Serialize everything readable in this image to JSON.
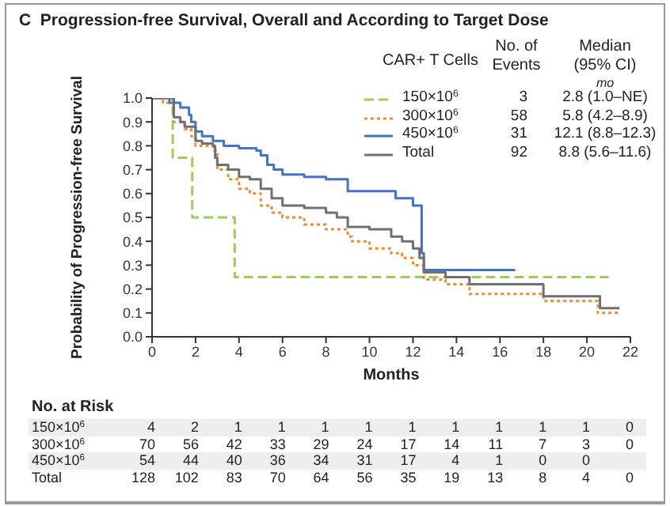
{
  "chart_data": {
    "type": "step",
    "title": "C  Progression-free Survival, Overall and According to Target Dose",
    "xlabel": "Months",
    "ylabel": "Probability of Progression-free Survival",
    "legend_title": "CAR+ T Cells",
    "xlim": [
      0,
      22
    ],
    "xticks": [
      0,
      2,
      4,
      6,
      8,
      10,
      12,
      14,
      16,
      18,
      20,
      22
    ],
    "ylim": [
      0,
      1.0
    ],
    "yticks": [
      {
        "value": 0,
        "label": "0.0"
      },
      0.1,
      0.2,
      0.3,
      0.4,
      0.5,
      0.6,
      0.7,
      0.8,
      0.9,
      {
        "value": 1,
        "label": "1.0"
      }
    ],
    "legend": "top right",
    "marker": "none",
    "series": [
      {
        "name": "150×10$^{6}$",
        "color": "#9acd5a",
        "line_style": "dashed",
        "x": [
          0,
          0.95,
          1.85,
          3.8,
          21
        ],
        "values": [
          1.0,
          0.75,
          0.5,
          0.25,
          0.25
        ]
      },
      {
        "name": "300×10$^{6}$",
        "color": "#f08a30",
        "line_style": "dotted",
        "x": [
          0,
          0.5,
          1.0,
          1.5,
          1.8,
          2.0,
          2.8,
          3.0,
          3.5,
          4.0,
          4.5,
          5.0,
          5.5,
          6.0,
          7.0,
          8.0,
          9.0,
          9.2,
          10.0,
          11.0,
          11.5,
          12.0,
          12.5,
          13.5,
          14.6,
          18.0,
          20.5,
          21.5
        ],
        "values": [
          1.0,
          0.98,
          0.9,
          0.87,
          0.84,
          0.8,
          0.78,
          0.7,
          0.66,
          0.62,
          0.6,
          0.55,
          0.52,
          0.5,
          0.47,
          0.45,
          0.42,
          0.4,
          0.37,
          0.35,
          0.33,
          0.3,
          0.24,
          0.22,
          0.18,
          0.15,
          0.1,
          0.1
        ]
      },
      {
        "name": "450×10$^{6}$",
        "color": "#4472c4",
        "line_style": "solid",
        "x": [
          0,
          1.0,
          1.3,
          1.7,
          1.8,
          2.0,
          2.3,
          2.8,
          3.3,
          4.0,
          4.8,
          5.0,
          5.3,
          5.6,
          6.0,
          7.0,
          8.0,
          9.0,
          11.2,
          12.0,
          12.4,
          12.5,
          16.7
        ],
        "values": [
          1.0,
          0.98,
          0.96,
          0.93,
          0.9,
          0.86,
          0.84,
          0.82,
          0.8,
          0.79,
          0.78,
          0.76,
          0.72,
          0.7,
          0.68,
          0.67,
          0.66,
          0.61,
          0.58,
          0.55,
          0.35,
          0.28,
          0.28
        ]
      },
      {
        "name": "Total",
        "color": "#707070",
        "line_style": "solid",
        "x": [
          0,
          0.8,
          1.0,
          1.3,
          1.5,
          2.0,
          2.3,
          2.8,
          2.9,
          3.0,
          3.5,
          4.0,
          4.5,
          5.0,
          5.5,
          6.0,
          7.0,
          8.0,
          8.5,
          9.0,
          10.0,
          11.0,
          11.5,
          12.0,
          12.3,
          12.5,
          13.5,
          14.6,
          18.0,
          20.6,
          21.5
        ],
        "values": [
          1.0,
          0.98,
          0.92,
          0.9,
          0.88,
          0.82,
          0.81,
          0.8,
          0.75,
          0.72,
          0.7,
          0.67,
          0.66,
          0.62,
          0.58,
          0.55,
          0.54,
          0.52,
          0.5,
          0.46,
          0.45,
          0.42,
          0.4,
          0.37,
          0.33,
          0.27,
          0.25,
          0.22,
          0.17,
          0.12,
          0.12
        ]
      }
    ],
    "annotations": [
      "No. of Events",
      "Median (95% CI)",
      "mo",
      "3",
      "2.8 (1.0–NE)",
      "58",
      "5.8 (4.2–8.9)",
      "31",
      "12.1 (8.8–12.3)",
      "92",
      "8.8 (5.6–11.6)",
      "No. at Risk",
      "150×10$^{6}$ 4 2 1 1 1 1 1 1 1 1 1 0",
      "300×10$^{6}$ 70 56 42 33 29 24 17 14 11 7 3 0",
      "450×10$^{6}$ 54 44 40 36 34 31 17 4 1 0 0",
      "Total 128 102 83 70 64 56 35 19 13 8 4 0"
    ]
  }
}
